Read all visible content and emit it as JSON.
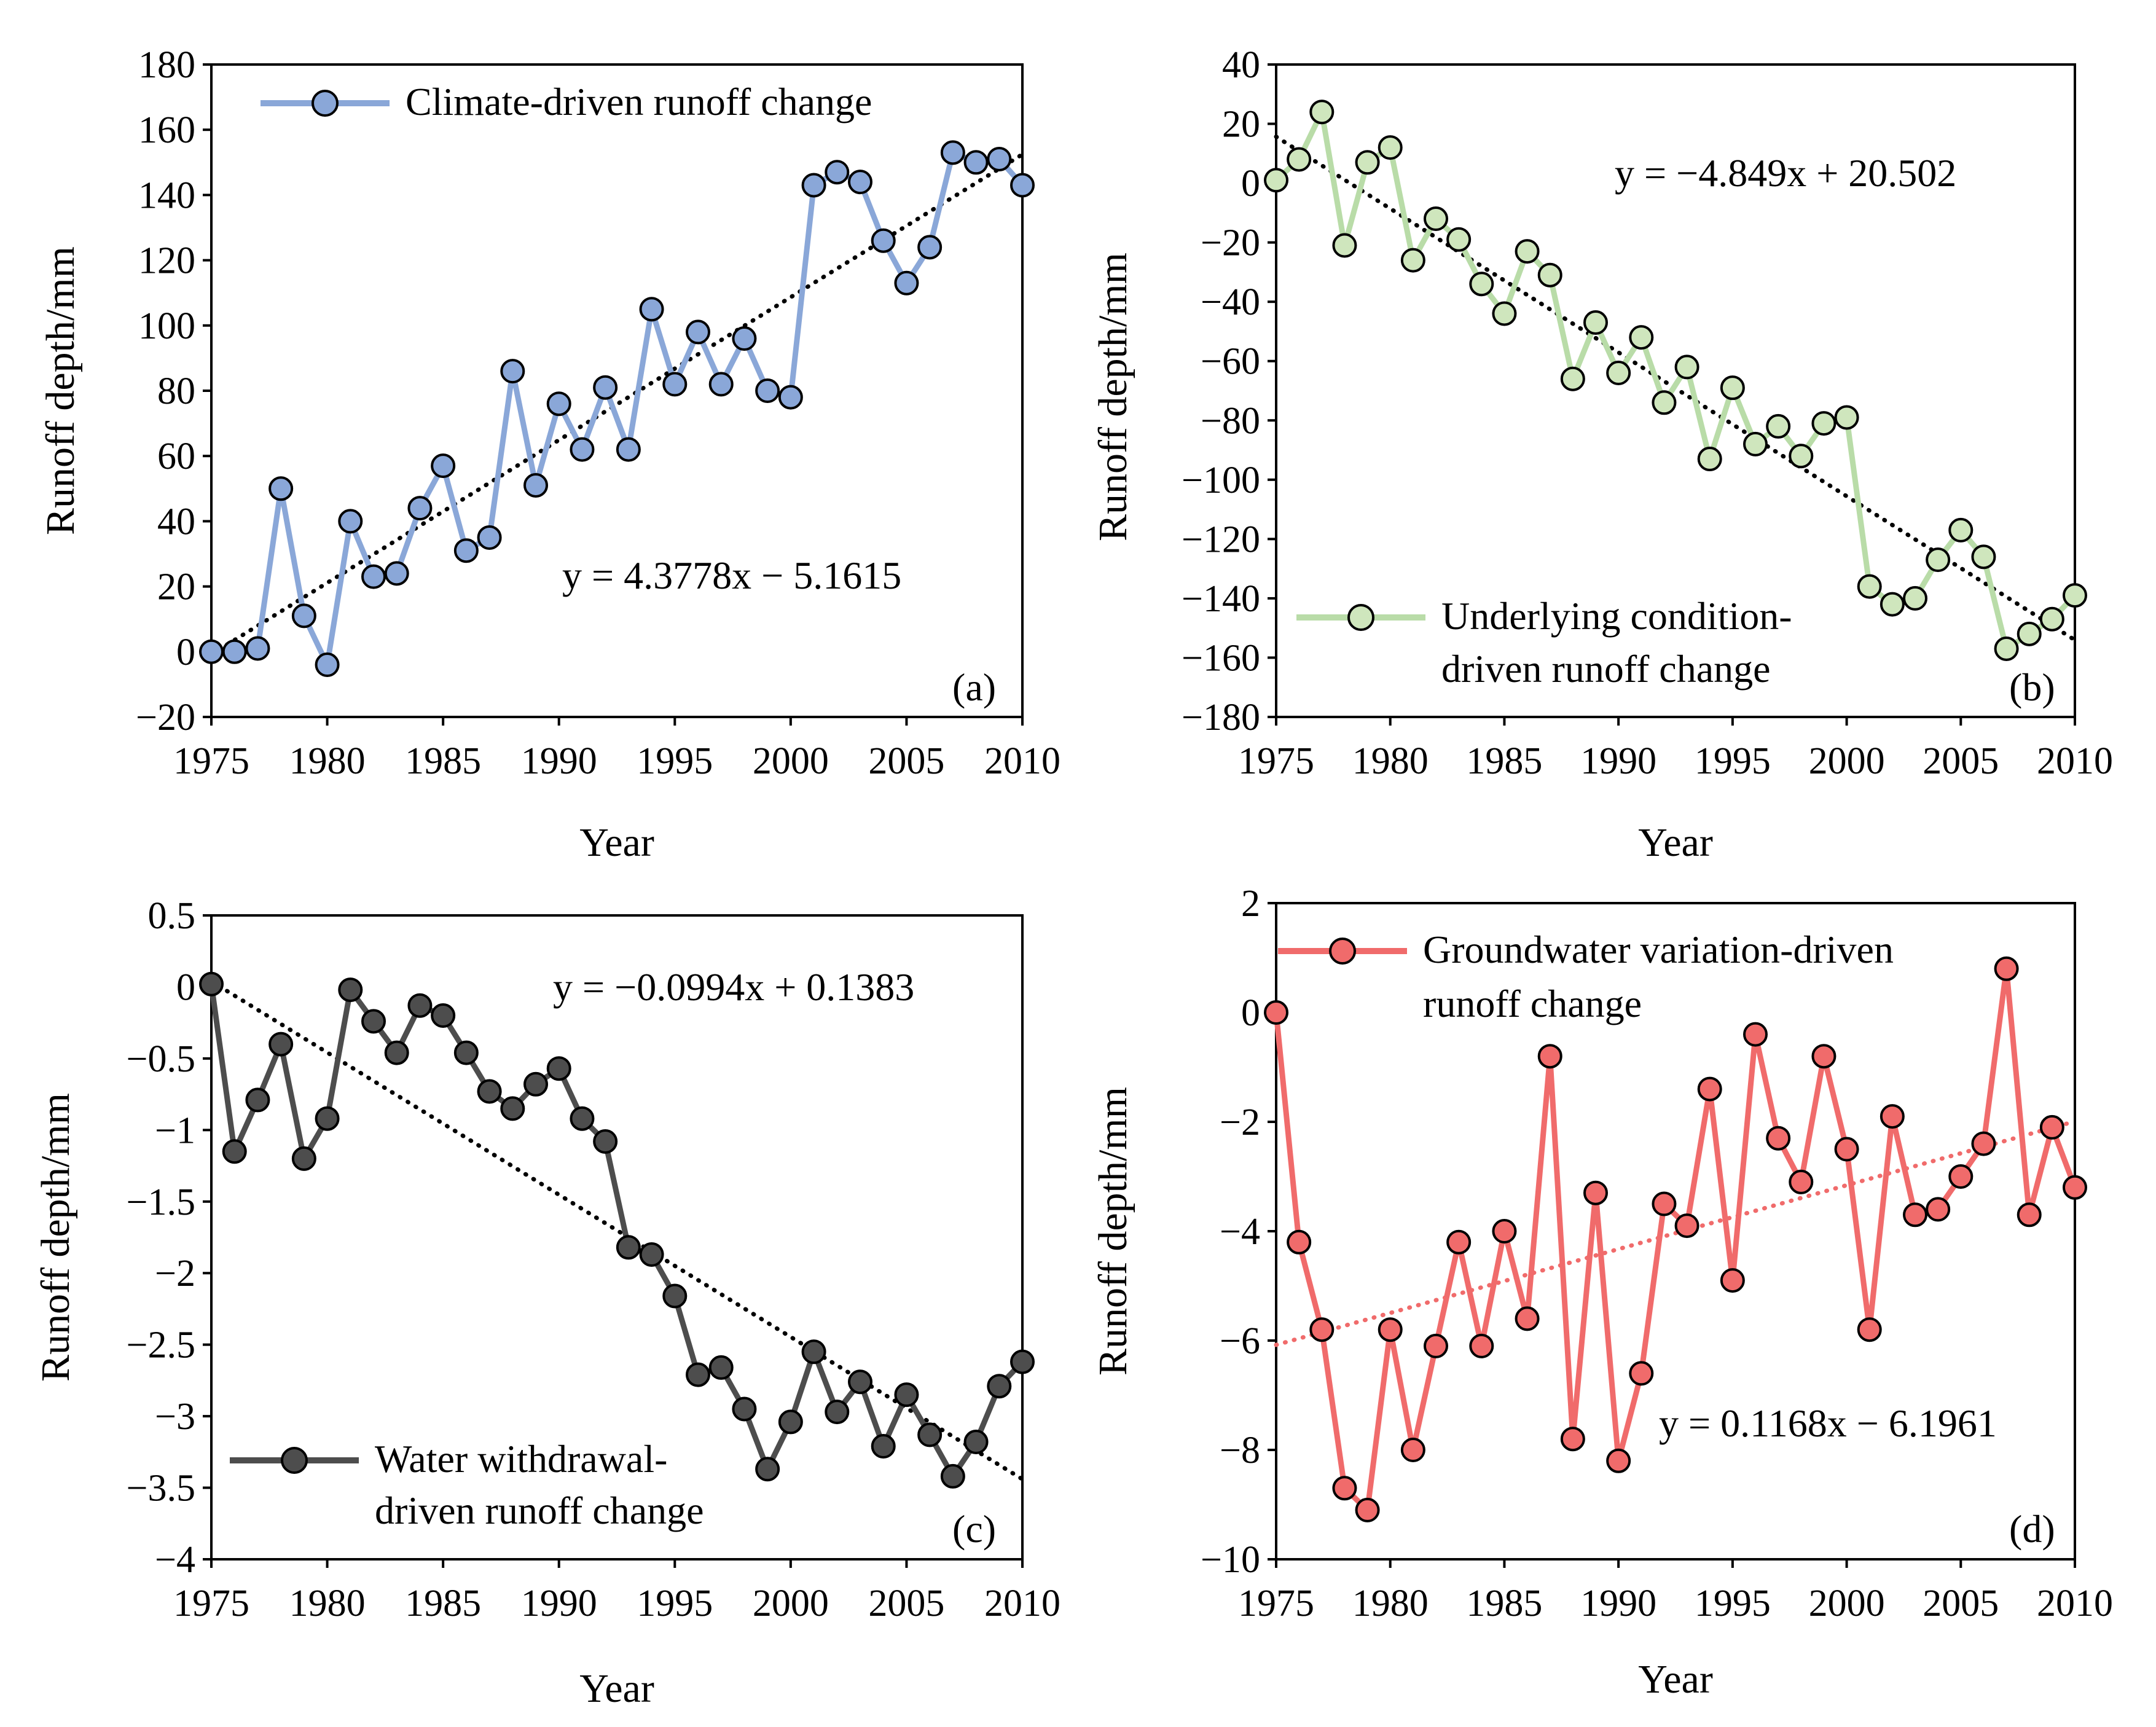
{
  "chart_data": [
    {
      "type": "line",
      "panel": "(a)",
      "xlabel": "Year",
      "ylabel": "Runoff depth/mm",
      "xlim": [
        1975,
        2010
      ],
      "ylim": [
        -20,
        180
      ],
      "xticks": [
        1975,
        1980,
        1985,
        1990,
        1995,
        2000,
        2005,
        2010
      ],
      "yticks": [
        -20,
        0,
        20,
        40,
        60,
        80,
        100,
        120,
        140,
        160,
        180
      ],
      "yticklabels": [
        "−20",
        "0",
        "20",
        "40",
        "60",
        "80",
        "100",
        "120",
        "140",
        "160",
        "180"
      ],
      "series": [
        {
          "name": "Climate-driven runoff change",
          "color": "#8aa7d8",
          "marker_color": "#8aa7d8",
          "x": [
            1975,
            1976,
            1977,
            1978,
            1979,
            1980,
            1981,
            1982,
            1983,
            1984,
            1985,
            1986,
            1987,
            1988,
            1989,
            1990,
            1991,
            1992,
            1993,
            1994,
            1995,
            1996,
            1997,
            1998,
            1999,
            2000,
            2001,
            2002,
            2003,
            2004,
            2005,
            2006,
            2007,
            2008,
            2009,
            2010
          ],
          "values": [
            0,
            0,
            1,
            50,
            11,
            -4,
            40,
            23,
            24,
            44,
            57,
            31,
            35,
            86,
            51,
            76,
            62,
            81,
            62,
            105,
            82,
            98,
            82,
            96,
            80,
            78,
            143,
            147,
            144,
            126,
            113,
            124,
            153,
            150,
            151,
            143
          ]
        }
      ],
      "trendline": {
        "slope": 4.3778,
        "intercept": -5.1615,
        "color": "#000000",
        "equation": "y = 4.3778x − 5.1615",
        "equation_position": "lower-right"
      },
      "legend_position": "top-left"
    },
    {
      "type": "line",
      "panel": "(b)",
      "xlabel": "Year",
      "ylabel": "Runoff depth/mm",
      "xlim": [
        1975,
        2010
      ],
      "ylim": [
        -180,
        40
      ],
      "xticks": [
        1975,
        1980,
        1985,
        1990,
        1995,
        2000,
        2005,
        2010
      ],
      "yticks": [
        -180,
        -160,
        -140,
        -120,
        -100,
        -80,
        -60,
        -40,
        -20,
        0,
        20,
        40
      ],
      "yticklabels": [
        "−180",
        "−160",
        "−140",
        "−120",
        "−100",
        "−80",
        "−60",
        "−40",
        "−20",
        "0",
        "20",
        "40"
      ],
      "series": [
        {
          "name": "Underlying condition-driven runoff change",
          "legend_lines": [
            "Underlying condition-",
            "driven runoff change"
          ],
          "color": "#b9dca8",
          "marker_color": "#cfe6bd",
          "x": [
            1975,
            1976,
            1977,
            1978,
            1979,
            1980,
            1981,
            1982,
            1983,
            1984,
            1985,
            1986,
            1987,
            1988,
            1989,
            1990,
            1991,
            1992,
            1993,
            1994,
            1995,
            1996,
            1997,
            1998,
            1999,
            2000,
            2001,
            2002,
            2003,
            2004,
            2005,
            2006,
            2007,
            2008,
            2009,
            2010
          ],
          "values": [
            1,
            8,
            24,
            -21,
            7,
            12,
            -26,
            -12,
            -19,
            -34,
            -44,
            -23,
            -31,
            -66,
            -47,
            -64,
            -52,
            -74,
            -62,
            -93,
            -69,
            -88,
            -82,
            -92,
            -81,
            -79,
            -136,
            -142,
            -140,
            -127,
            -117,
            -126,
            -157,
            -152,
            -147,
            -139
          ]
        }
      ],
      "trendline": {
        "slope": -4.849,
        "intercept": 20.502,
        "color": "#000000",
        "equation": "y = −4.849x + 20.502",
        "equation_position": "top-right"
      },
      "legend_position": "bottom-left"
    },
    {
      "type": "line",
      "panel": "(c)",
      "xlabel": "Year",
      "ylabel": "Runoff depth/mm",
      "xlim": [
        1975,
        2010
      ],
      "ylim": [
        -4,
        0.5
      ],
      "xticks": [
        1975,
        1980,
        1985,
        1990,
        1995,
        2000,
        2005,
        2010
      ],
      "yticks": [
        -4,
        -3.5,
        -3,
        -2.5,
        -2,
        -1.5,
        -1,
        -0.5,
        0,
        0.5
      ],
      "yticklabels": [
        "−4",
        "−3.5",
        "−3",
        "−2.5",
        "−2",
        "−1.5",
        "−1",
        "−0.5",
        "0",
        "0.5"
      ],
      "series": [
        {
          "name": "Water withdrawal-driven runoff change",
          "legend_lines": [
            "Water withdrawal-",
            "driven runoff change"
          ],
          "color": "#4d4d4d",
          "marker_color": "#4d4d4d",
          "x": [
            1975,
            1976,
            1977,
            1978,
            1979,
            1980,
            1981,
            1982,
            1983,
            1984,
            1985,
            1986,
            1987,
            1988,
            1989,
            1990,
            1991,
            1992,
            1993,
            1994,
            1995,
            1996,
            1997,
            1998,
            1999,
            2000,
            2001,
            2002,
            2003,
            2004,
            2005,
            2006,
            2007,
            2008,
            2009,
            2010
          ],
          "values": [
            0.02,
            -1.15,
            -0.79,
            -0.4,
            -1.2,
            -0.92,
            -0.02,
            -0.24,
            -0.46,
            -0.13,
            -0.2,
            -0.46,
            -0.73,
            -0.85,
            -0.68,
            -0.57,
            -0.92,
            -1.08,
            -1.82,
            -1.87,
            -2.16,
            -2.71,
            -2.66,
            -2.95,
            -3.37,
            -3.04,
            -2.55,
            -2.97,
            -2.76,
            -3.21,
            -2.85,
            -3.13,
            -3.42,
            -3.18,
            -2.79,
            -2.62
          ]
        }
      ],
      "trendline": {
        "slope": -0.0994,
        "intercept": 0.1383,
        "color": "#000000",
        "equation": "y = −0.0994x + 0.1383",
        "equation_position": "top-right"
      },
      "legend_position": "bottom-left"
    },
    {
      "type": "line",
      "panel": "(d)",
      "xlabel": "Year",
      "ylabel": "Runoff depth/mm",
      "xlim": [
        1975,
        2010
      ],
      "ylim": [
        -10,
        2
      ],
      "xticks": [
        1975,
        1980,
        1985,
        1990,
        1995,
        2000,
        2005,
        2010
      ],
      "yticks": [
        -10,
        -8,
        -6,
        -4,
        -2,
        0,
        2
      ],
      "yticklabels": [
        "−10",
        "−8",
        "−6",
        "−4",
        "−2",
        "0",
        "2"
      ],
      "series": [
        {
          "name": "Groundwater variation-driven runoff change",
          "legend_lines": [
            "Groundwater variation-driven",
            "runoff change"
          ],
          "color": "#f06b6b",
          "marker_color": "#f06b6b",
          "x": [
            1975,
            1976,
            1977,
            1978,
            1979,
            1980,
            1981,
            1982,
            1983,
            1984,
            1985,
            1986,
            1987,
            1988,
            1989,
            1990,
            1991,
            1992,
            1993,
            1994,
            1995,
            1996,
            1997,
            1998,
            1999,
            2000,
            2001,
            2002,
            2003,
            2004,
            2005,
            2006,
            2007,
            2008,
            2009,
            2010
          ],
          "values": [
            0,
            -4.2,
            -5.8,
            -8.7,
            -9.1,
            -5.8,
            -8,
            -6.1,
            -4.2,
            -6.1,
            -4,
            -5.6,
            -0.8,
            -7.8,
            -3.3,
            -8.2,
            -6.6,
            -3.5,
            -3.9,
            -1.4,
            -4.9,
            -0.4,
            -2.3,
            -3.1,
            -0.8,
            -2.5,
            -5.8,
            -1.9,
            -3.7,
            -3.6,
            -3,
            -2.4,
            0.8,
            -3.7,
            -2.1,
            -3.2
          ]
        }
      ],
      "trendline": {
        "slope": 0.1168,
        "intercept": -6.1961,
        "color": "#f06b6b",
        "equation": "y = 0.1168x − 6.1961",
        "equation_position": "lower-right"
      },
      "legend_position": "top-left"
    }
  ]
}
